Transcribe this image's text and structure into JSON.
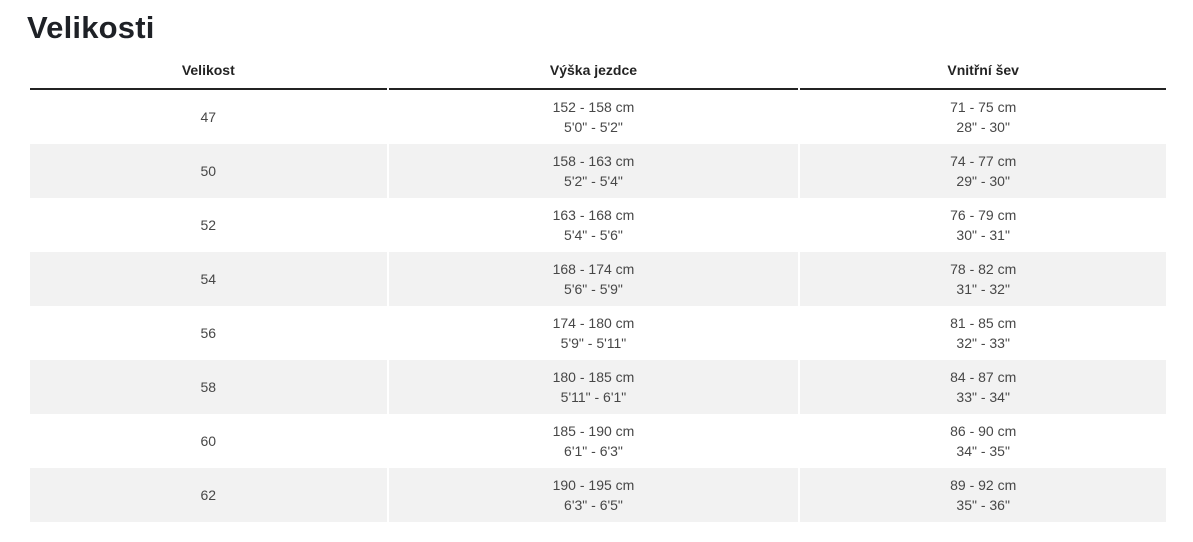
{
  "page": {
    "title": "Velikosti"
  },
  "colors": {
    "stripe": "#f2f2f2",
    "header_border": "#232323",
    "title_text": "#1e2126",
    "body_text": "#474747"
  },
  "table": {
    "headers": [
      "Velikost",
      "Výška jezdce",
      "Vnitřní šev"
    ],
    "rows": [
      {
        "size": "47",
        "height_cm": "152 - 158 cm",
        "height_ft": "5'0\" - 5'2\"",
        "inseam_cm": "71 - 75 cm",
        "inseam_in": "28\" - 30\""
      },
      {
        "size": "50",
        "height_cm": "158 - 163 cm",
        "height_ft": "5'2\" - 5'4\"",
        "inseam_cm": "74 - 77 cm",
        "inseam_in": "29\" - 30\""
      },
      {
        "size": "52",
        "height_cm": "163 - 168 cm",
        "height_ft": "5'4\" - 5'6\"",
        "inseam_cm": "76 - 79 cm",
        "inseam_in": "30\" - 31\""
      },
      {
        "size": "54",
        "height_cm": "168 - 174 cm",
        "height_ft": "5'6\" - 5'9\"",
        "inseam_cm": "78 - 82 cm",
        "inseam_in": "31\" - 32\""
      },
      {
        "size": "56",
        "height_cm": "174 - 180 cm",
        "height_ft": "5'9\" - 5'11\"",
        "inseam_cm": "81 - 85 cm",
        "inseam_in": "32\" - 33\""
      },
      {
        "size": "58",
        "height_cm": "180 - 185 cm",
        "height_ft": "5'11\" - 6'1\"",
        "inseam_cm": "84 - 87 cm",
        "inseam_in": "33\" - 34\""
      },
      {
        "size": "60",
        "height_cm": "185 - 190 cm",
        "height_ft": "6'1\" - 6'3\"",
        "inseam_cm": "86 - 90 cm",
        "inseam_in": "34\" - 35\""
      },
      {
        "size": "62",
        "height_cm": "190 - 195 cm",
        "height_ft": "6'3\" - 6'5\"",
        "inseam_cm": "89 - 92 cm",
        "inseam_in": "35\" - 36\""
      }
    ]
  }
}
